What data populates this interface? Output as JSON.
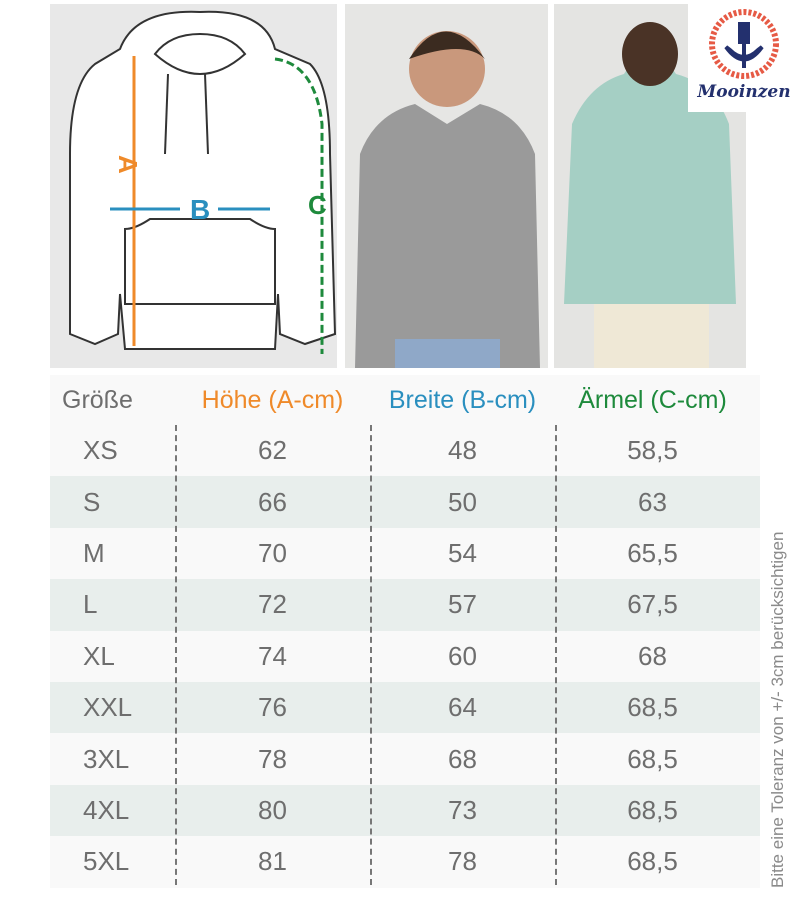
{
  "logo": {
    "text": "Mooinzen"
  },
  "diagram": {
    "label_a": "A",
    "label_b": "B",
    "label_c": "C"
  },
  "colors": {
    "height": "#ef8a2a",
    "width": "#2a8fbf",
    "sleeve": "#1e8a3c",
    "text": "#6e6e6e",
    "alt_row": "#e8eeec"
  },
  "table": {
    "headers": [
      "Größe",
      "Höhe (A-cm)",
      "Breite (B-cm)",
      "Ärmel (C-cm)"
    ],
    "rows": [
      [
        "XS",
        "62",
        "48",
        "58,5"
      ],
      [
        "S",
        "66",
        "50",
        "63"
      ],
      [
        "M",
        "70",
        "54",
        "65,5"
      ],
      [
        "L",
        "72",
        "57",
        "67,5"
      ],
      [
        "XL",
        "74",
        "60",
        "68"
      ],
      [
        "XXL",
        "76",
        "64",
        "68,5"
      ],
      [
        "3XL",
        "78",
        "68",
        "68,5"
      ],
      [
        "4XL",
        "80",
        "73",
        "68,5"
      ],
      [
        "5XL",
        "81",
        "78",
        "68,5"
      ]
    ]
  },
  "note": "Bitte eine Toleranz von +/- 3cm berücksichtigen"
}
